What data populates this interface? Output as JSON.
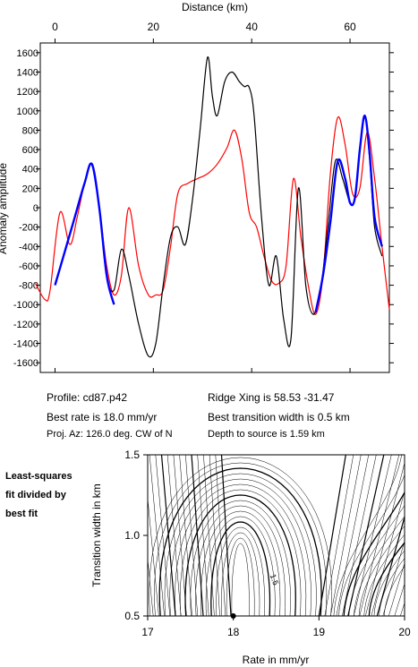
{
  "profile_panel": {
    "chart_data": {
      "type": "line",
      "xlabel": "Distance (km)",
      "ylabel": "Anomaly amplitude",
      "xlim": [
        -3,
        68
      ],
      "ylim": [
        -1700,
        1700
      ],
      "x_ticks": [
        0,
        20,
        40,
        60
      ],
      "x_tick_labels": [
        "0",
        "20",
        "40",
        "60"
      ],
      "y_ticks": [
        -1600,
        -1400,
        -1200,
        -1000,
        -800,
        -600,
        -400,
        -200,
        0,
        200,
        400,
        600,
        800,
        1000,
        1200,
        1400,
        1600
      ],
      "y_tick_labels": [
        "-1600",
        "-1400",
        "-1200",
        "-1000",
        "-800",
        "-600",
        "-400",
        "-200",
        "0",
        "200",
        "400",
        "600",
        "800",
        "1000",
        "1200",
        "1400",
        "1600"
      ],
      "grid": false,
      "series": [
        {
          "color": "#000000",
          "x": [
            0,
            2,
            4,
            6,
            7.5,
            9,
            10.5,
            12,
            13.5,
            15,
            17,
            19,
            20.5,
            22,
            23.5,
            25,
            26.5,
            28,
            29.5,
            31,
            32,
            33,
            34.5,
            36,
            37.5,
            38.5,
            39.5,
            40.5,
            42,
            43.5,
            45,
            46.5,
            48,
            49.5,
            51,
            52.5,
            54,
            55.5,
            57,
            58.5,
            60,
            61,
            62,
            63,
            64,
            65,
            66.5
          ],
          "y": [
            -780,
            -450,
            -100,
            250,
            450,
            0,
            -700,
            -850,
            -430,
            -700,
            -1200,
            -1530,
            -1400,
            -800,
            -300,
            -200,
            -380,
            100,
            800,
            1550,
            1150,
            950,
            1300,
            1400,
            1300,
            1250,
            1240,
            950,
            -100,
            -800,
            -500,
            -1150,
            -1350,
            200,
            -800,
            -1100,
            -850,
            -200,
            480,
            300,
            50,
            100,
            600,
            950,
            500,
            -200,
            -500
          ]
        },
        {
          "color": "#0000ff",
          "x": [
            0,
            2,
            4,
            6,
            7.5,
            9,
            10.5,
            12,
            53,
            54.5,
            56,
            57.5,
            59,
            60,
            61,
            62,
            63,
            64,
            65,
            66.5
          ],
          "y": [
            -800,
            -450,
            -100,
            250,
            450,
            0,
            -700,
            -1000,
            -1080,
            -700,
            -150,
            480,
            300,
            50,
            100,
            600,
            950,
            550,
            -100,
            -400
          ]
        },
        {
          "color": "#ff0000",
          "x": [
            -4,
            -2,
            -1,
            1,
            3,
            4.5,
            6,
            7.5,
            9,
            10.5,
            12,
            13.5,
            15,
            17,
            19,
            20.5,
            22,
            23.5,
            25,
            27,
            29,
            31,
            33,
            35,
            36.5,
            38,
            39.5,
            41,
            42.5,
            44,
            45.5,
            47,
            48.5,
            50,
            51.5,
            53,
            54.5,
            56,
            57.5,
            59,
            60.5,
            62,
            63.5,
            65,
            66.5,
            68
          ],
          "y": [
            -780,
            -950,
            -850,
            -50,
            -380,
            -100,
            250,
            450,
            0,
            -600,
            -900,
            -700,
            0,
            -600,
            -900,
            -900,
            -850,
            -400,
            150,
            250,
            300,
            350,
            450,
            620,
            800,
            500,
            -50,
            -200,
            -500,
            -750,
            -780,
            -600,
            300,
            -300,
            -800,
            -1100,
            -700,
            350,
            930,
            650,
            150,
            200,
            780,
            300,
            -400,
            -1050
          ]
        }
      ]
    }
  },
  "info": {
    "profile": "Profile: cd87.p42",
    "best_rate": "Best rate is 18.0 mm/yr",
    "proj_az": "Proj. Az: 126.0 deg. CW of N",
    "ridge_xing": "Ridge Xing is 58.53 -31.47",
    "best_transition": "Best transition width is 0.5 km",
    "depth": "Depth to source is   1.59 km"
  },
  "contour_panel": {
    "note_lines": [
      "Least-squares",
      "fit divided by",
      "best fit"
    ],
    "chart_data": {
      "type": "contour",
      "xlabel": "Rate in mm/yr",
      "ylabel": "Transition width in km",
      "xlim": [
        17,
        20
      ],
      "ylim": [
        0.5,
        1.5
      ],
      "x_ticks": [
        17,
        18,
        19,
        20
      ],
      "x_tick_labels": [
        "17",
        "18",
        "19",
        "20"
      ],
      "y_ticks": [
        0.5,
        1.0,
        1.5
      ],
      "y_tick_labels": [
        "0.5",
        "1.0",
        "1.5"
      ],
      "contour_label": "1.5",
      "contour_label_x": 18.45,
      "contour_label_y": 0.72,
      "minimum_x": 18.0,
      "minimum_y": 0.5
    }
  }
}
